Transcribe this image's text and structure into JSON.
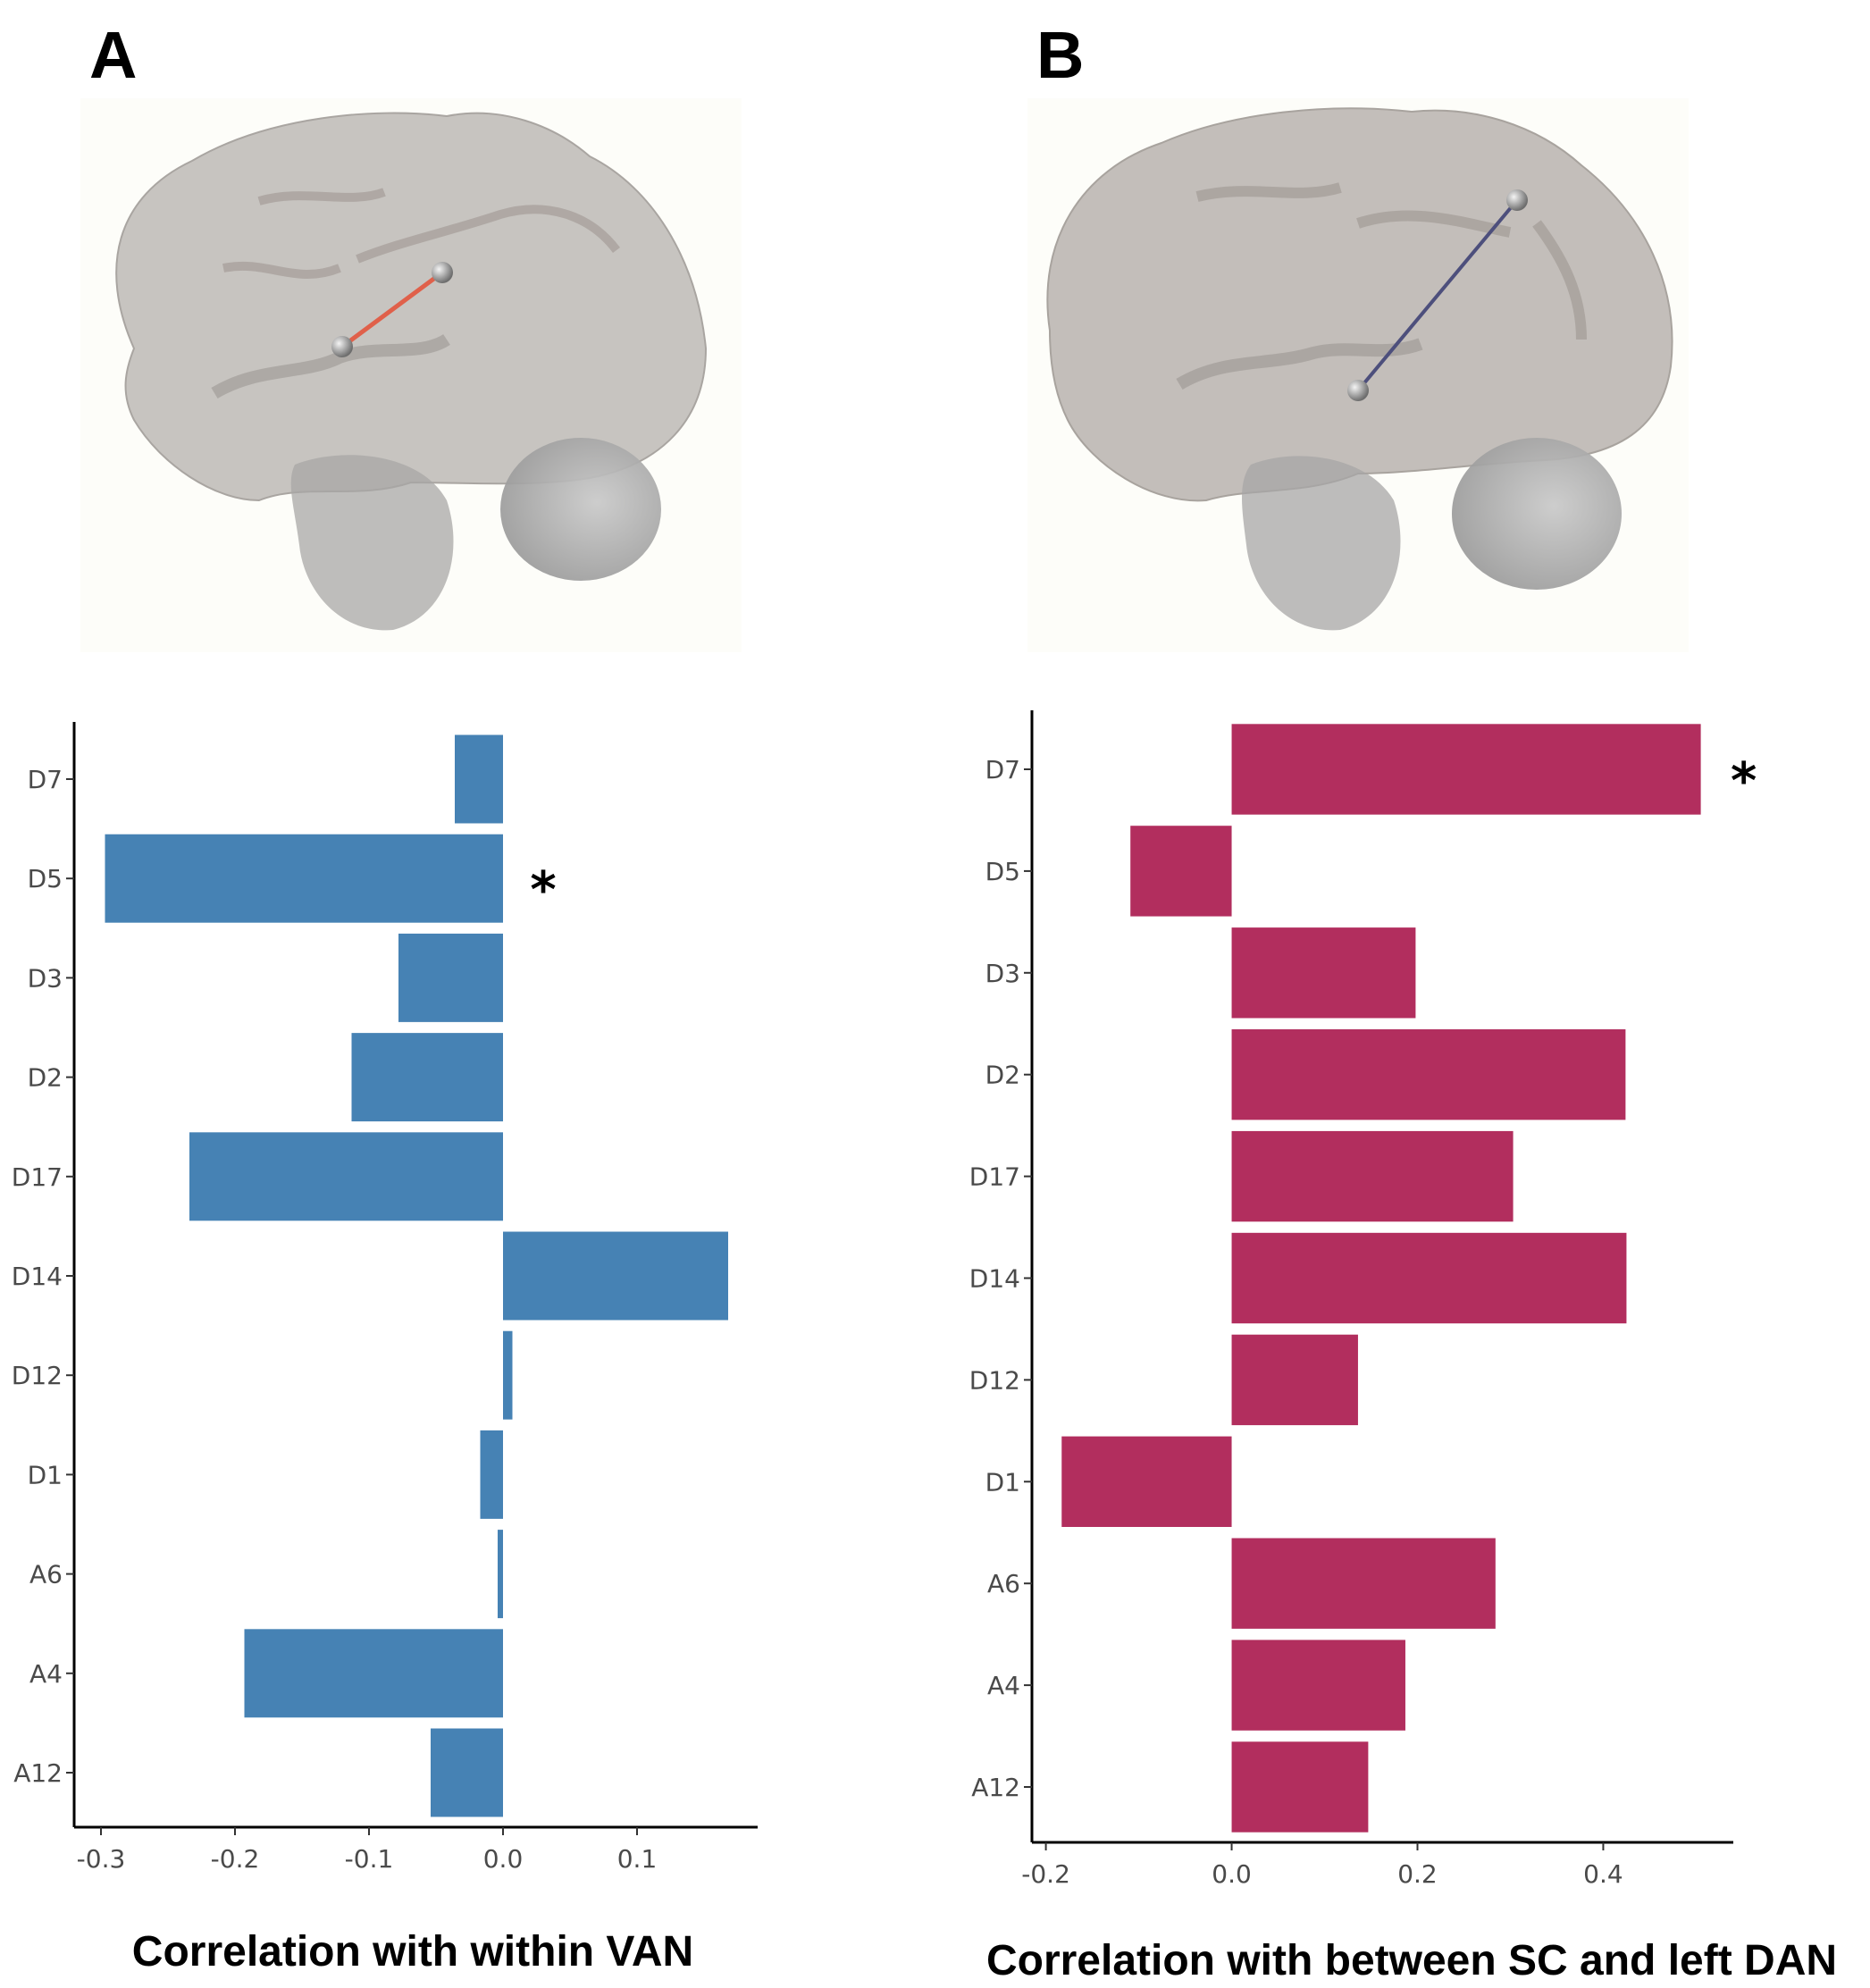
{
  "panels": {
    "a": {
      "letter": "A"
    },
    "b": {
      "letter": "B"
    }
  },
  "colors": {
    "panel_a_bars": "#4682b4",
    "panel_b_bars": "#b22e5e",
    "connection_a": "#e0604a",
    "connection_b": "#4d4f7c"
  },
  "chart_data": [
    {
      "type": "bar",
      "orientation": "horizontal",
      "title": "",
      "xlabel": "Correlation with within VAN",
      "ylabel": "",
      "categories": [
        "D7",
        "D5",
        "D3",
        "D2",
        "D17",
        "D14",
        "D12",
        "D1",
        "A6",
        "A4",
        "A12"
      ],
      "values": [
        -0.036,
        -0.297,
        -0.078,
        -0.113,
        -0.234,
        0.168,
        0.007,
        -0.017,
        -0.004,
        -0.193,
        -0.054
      ],
      "xlim": [
        -0.32,
        0.19
      ],
      "xticks": [
        -0.3,
        -0.2,
        -0.1,
        0.0,
        0.1
      ],
      "xtick_labels": [
        "-0.3",
        "-0.2",
        "-0.1",
        "0.0",
        "0.1"
      ],
      "significant": [
        "D5"
      ],
      "significance_marker": "*",
      "grid": false
    },
    {
      "type": "bar",
      "orientation": "horizontal",
      "title": "",
      "xlabel": "Correlation with between SC and left DAN",
      "ylabel": "",
      "categories": [
        "D7",
        "D5",
        "D3",
        "D2",
        "D17",
        "D14",
        "D12",
        "D1",
        "A6",
        "A4",
        "A12"
      ],
      "values": [
        0.505,
        -0.109,
        0.198,
        0.424,
        0.303,
        0.425,
        0.136,
        -0.183,
        0.284,
        0.187,
        0.147
      ],
      "xlim": [
        -0.215,
        0.54
      ],
      "xticks": [
        -0.2,
        0.0,
        0.2,
        0.4
      ],
      "xtick_labels": [
        "-0.2",
        "0.0",
        "0.2",
        "0.4"
      ],
      "significant": [
        "D7"
      ],
      "significance_marker": "*",
      "grid": false
    }
  ]
}
